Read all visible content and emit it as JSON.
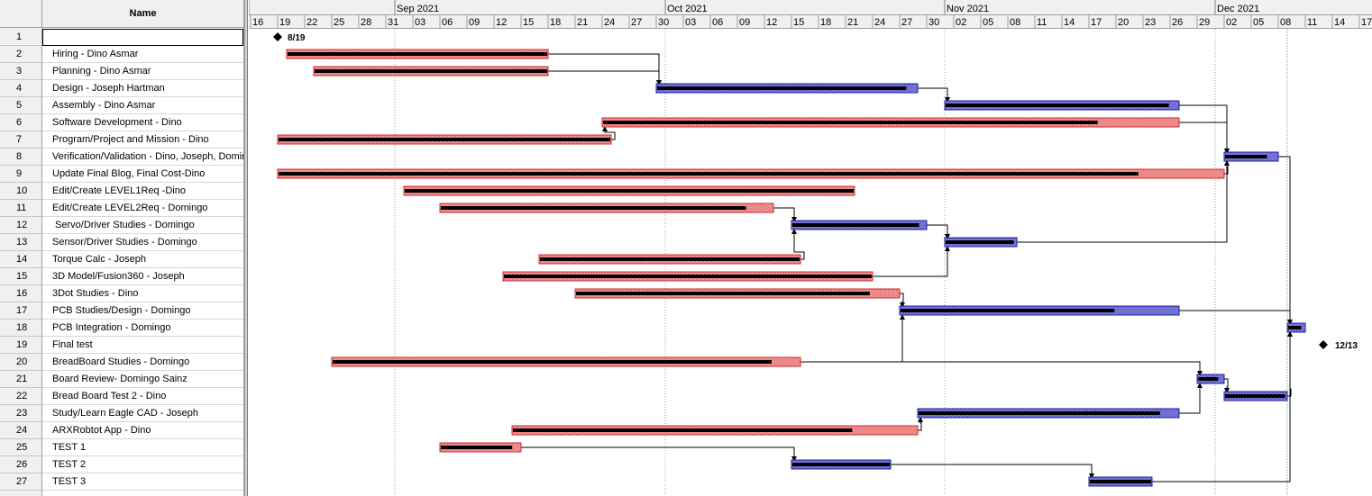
{
  "grid": {
    "name_header": "Name",
    "rows": [
      {
        "num": "1",
        "name": ""
      },
      {
        "num": "2",
        "name": "Hiring - Dino Asmar"
      },
      {
        "num": "3",
        "name": "Planning - Dino Asmar"
      },
      {
        "num": "4",
        "name": "Design - Joseph Hartman"
      },
      {
        "num": "5",
        "name": "Assembly - Dino Asmar"
      },
      {
        "num": "6",
        "name": "Software Development - Dino"
      },
      {
        "num": "7",
        "name": "Program/Project and Mission - Dino"
      },
      {
        "num": "8",
        "name": "Verification/Validation - Dino, Joseph, Domin"
      },
      {
        "num": "9",
        "name": "Update Final Blog, Final Cost-Dino"
      },
      {
        "num": "10",
        "name": "Edit/Create LEVEL1Req -Dino"
      },
      {
        "num": "11",
        "name": "Edit/Create LEVEL2Req - Domingo"
      },
      {
        "num": "12",
        "name": " Servo/Driver Studies - Domingo"
      },
      {
        "num": "13",
        "name": "Sensor/Driver Studies - Domingo"
      },
      {
        "num": "14",
        "name": "Torque Calc - Joseph"
      },
      {
        "num": "15",
        "name": "3D Model/Fusion360 - Joseph"
      },
      {
        "num": "16",
        "name": "3Dot Studies - Dino"
      },
      {
        "num": "17",
        "name": "PCB Studies/Design - Domingo"
      },
      {
        "num": "18",
        "name": "PCB Integration - Domingo"
      },
      {
        "num": "19",
        "name": "Final test"
      },
      {
        "num": "20",
        "name": "BreadBoard Studies - Domingo"
      },
      {
        "num": "21",
        "name": "Board Review- Domingo Sainz"
      },
      {
        "num": "22",
        "name": "Bread Board Test 2 - Dino"
      },
      {
        "num": "23",
        "name": "Study/Learn Eagle CAD - Joseph"
      },
      {
        "num": "24",
        "name": "ARXRobtot App - Dino"
      },
      {
        "num": "25",
        "name": "TEST 1"
      },
      {
        "num": "26",
        "name": "TEST 2"
      },
      {
        "num": "27",
        "name": "TEST 3"
      }
    ]
  },
  "timescale": {
    "months": [
      "Sep 2021",
      "Oct 2021",
      "Nov 2021",
      "Dec 2021"
    ],
    "days": [
      "16",
      "19",
      "22",
      "25",
      "28",
      "31",
      "03",
      "06",
      "09",
      "12",
      "15",
      "18",
      "21",
      "24",
      "27",
      "30",
      "03",
      "06",
      "09",
      "12",
      "15",
      "18",
      "21",
      "24",
      "27",
      "30",
      "02",
      "05",
      "08",
      "11",
      "14",
      "17",
      "20",
      "23",
      "26",
      "29",
      "02",
      "05",
      "08",
      "11",
      "14",
      "17"
    ]
  },
  "milestones": [
    {
      "row": 0,
      "date": "2021-08-19",
      "label": "8/19"
    },
    {
      "row": 18,
      "date": "2021-12-13",
      "label": "12/13"
    }
  ],
  "tasks": [
    {
      "row": 1,
      "start": "2021-08-20",
      "end": "2021-09-17",
      "progress": 1.0,
      "type": "normal"
    },
    {
      "row": 2,
      "start": "2021-08-23",
      "end": "2021-09-17",
      "progress": 1.0,
      "type": "normal"
    },
    {
      "row": 3,
      "start": "2021-09-30",
      "end": "2021-10-28",
      "progress": 0.96,
      "type": "critical"
    },
    {
      "row": 4,
      "start": "2021-11-01",
      "end": "2021-11-26",
      "progress": 0.96,
      "type": "critical"
    },
    {
      "row": 5,
      "start": "2021-09-24",
      "end": "2021-11-26",
      "progress": 0.86,
      "type": "normal"
    },
    {
      "row": 6,
      "start": "2021-08-19",
      "end": "2021-09-24",
      "progress": 1.0,
      "type": "normal"
    },
    {
      "row": 7,
      "start": "2021-12-02",
      "end": "2021-12-07",
      "progress": 0.8,
      "type": "critical"
    },
    {
      "row": 8,
      "start": "2021-08-19",
      "end": "2021-12-01",
      "progress": 0.91,
      "type": "normal"
    },
    {
      "row": 9,
      "start": "2021-09-02",
      "end": "2021-10-21",
      "progress": 1.0,
      "type": "normal"
    },
    {
      "row": 10,
      "start": "2021-09-06",
      "end": "2021-10-12",
      "progress": 0.92,
      "type": "normal"
    },
    {
      "row": 11,
      "start": "2021-10-15",
      "end": "2021-10-29",
      "progress": 0.95,
      "type": "critical"
    },
    {
      "row": 12,
      "start": "2021-11-01",
      "end": "2021-11-08",
      "progress": 0.97,
      "type": "critical"
    },
    {
      "row": 13,
      "start": "2021-09-17",
      "end": "2021-10-15",
      "progress": 1.0,
      "type": "normal"
    },
    {
      "row": 14,
      "start": "2021-09-13",
      "end": "2021-10-23",
      "progress": 1.0,
      "type": "normal"
    },
    {
      "row": 15,
      "start": "2021-09-21",
      "end": "2021-10-26",
      "progress": 0.91,
      "type": "normal"
    },
    {
      "row": 16,
      "start": "2021-10-27",
      "end": "2021-11-26",
      "progress": 0.77,
      "type": "critical"
    },
    {
      "row": 17,
      "start": "2021-12-09",
      "end": "2021-12-10",
      "progress": 0.8,
      "type": "critical"
    },
    {
      "row": 19,
      "start": "2021-08-25",
      "end": "2021-10-15",
      "progress": 0.94,
      "type": "normal"
    },
    {
      "row": 20,
      "start": "2021-11-29",
      "end": "2021-12-01",
      "progress": 0.8,
      "type": "critical"
    },
    {
      "row": 21,
      "start": "2021-12-02",
      "end": "2021-12-08",
      "progress": 0.98,
      "type": "critical"
    },
    {
      "row": 22,
      "start": "2021-10-29",
      "end": "2021-11-26",
      "progress": 0.93,
      "type": "critical"
    },
    {
      "row": 23,
      "start": "2021-09-14",
      "end": "2021-10-28",
      "progress": 0.84,
      "type": "normal"
    },
    {
      "row": 24,
      "start": "2021-09-06",
      "end": "2021-09-14",
      "progress": 0.9,
      "type": "normal"
    },
    {
      "row": 25,
      "start": "2021-10-15",
      "end": "2021-10-25",
      "progress": 1.0,
      "type": "critical"
    },
    {
      "row": 26,
      "start": "2021-11-17",
      "end": "2021-11-23",
      "progress": 1.0,
      "type": "critical"
    }
  ],
  "links": [
    {
      "from": 1,
      "to": 3
    },
    {
      "from": 2,
      "to": 3
    },
    {
      "from": 3,
      "to": 4
    },
    {
      "from": 4,
      "to": 7
    },
    {
      "from": 5,
      "to": 7
    },
    {
      "from": 6,
      "to": 5
    },
    {
      "from": 7,
      "to": 17
    },
    {
      "from": 8,
      "to": 7
    },
    {
      "from": 10,
      "to": 11
    },
    {
      "from": 11,
      "to": 12
    },
    {
      "from": 12,
      "to": 7
    },
    {
      "from": 13,
      "to": 11
    },
    {
      "from": 14,
      "to": 12
    },
    {
      "from": 15,
      "to": 16
    },
    {
      "from": 16,
      "to": 17
    },
    {
      "from": 17,
      "to": 18
    },
    {
      "from": 19,
      "to": 20
    },
    {
      "from": 19,
      "to": 16
    },
    {
      "from": 20,
      "to": 21
    },
    {
      "from": 21,
      "to": 17
    },
    {
      "from": 22,
      "to": 20
    },
    {
      "from": 23,
      "to": 22
    },
    {
      "from": 24,
      "to": 25
    },
    {
      "from": 25,
      "to": 26
    },
    {
      "from": 26,
      "to": 17
    }
  ],
  "status_date": "2021-12-09",
  "colors": {
    "normal_fill": "#f4aaaa",
    "normal_border": "#d22828",
    "critical_fill": "#8c8ce6",
    "critical_border": "#1e1ea0",
    "progress": "#000000",
    "link": "#000000",
    "status_line": "#7ed07e",
    "gridline": "#a0a0a0"
  }
}
